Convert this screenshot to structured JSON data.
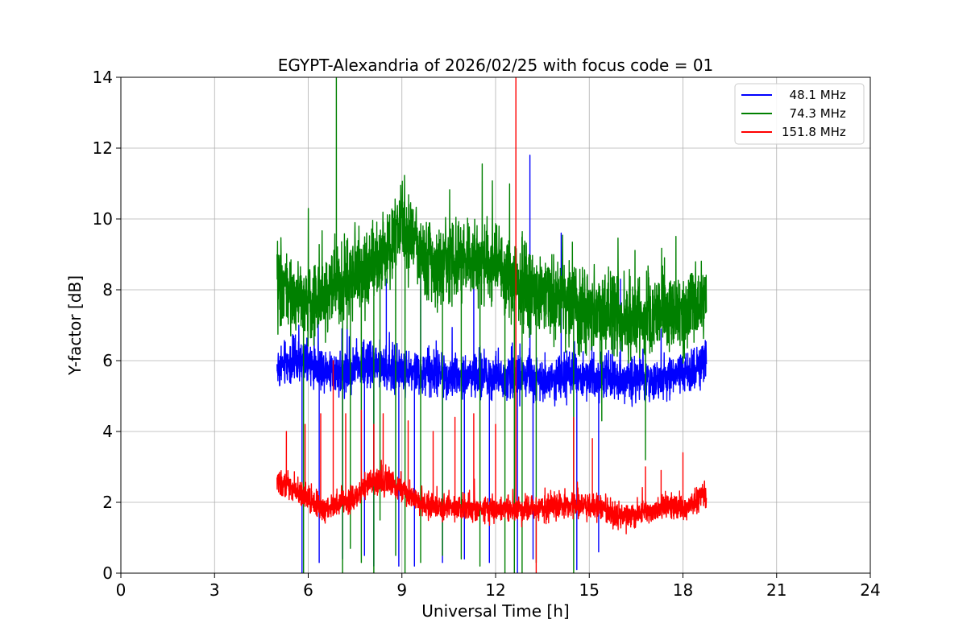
{
  "chart_data": {
    "type": "line",
    "title": "EGYPT-Alexandria of 2026/02/25 with focus code = 01",
    "xlabel": "Universal Time [h]",
    "ylabel": "Y-factor [dB]",
    "xlim": [
      0,
      24
    ],
    "ylim": [
      0,
      14
    ],
    "xticks": [
      0,
      3,
      6,
      9,
      12,
      15,
      18,
      21,
      24
    ],
    "yticks": [
      0,
      2,
      4,
      6,
      8,
      10,
      12,
      14
    ],
    "xtick_labels": [
      "0",
      "3",
      "6",
      "9",
      "12",
      "15",
      "18",
      "21",
      "24"
    ],
    "ytick_labels": [
      "0",
      "2",
      "4",
      "6",
      "8",
      "10",
      "12",
      "14"
    ],
    "grid": true,
    "legend_position": "top-right",
    "series": [
      {
        "name": "  48.1 MHz",
        "color": "#0000ff",
        "x_start": 5.0,
        "x_end": 18.75,
        "baseline": [
          [
            5.0,
            5.8
          ],
          [
            5.5,
            6.0
          ],
          [
            6.0,
            5.9
          ],
          [
            7.0,
            5.7
          ],
          [
            8.0,
            5.9
          ],
          [
            9.0,
            5.7
          ],
          [
            10.0,
            5.6
          ],
          [
            11.0,
            5.6
          ],
          [
            12.0,
            5.6
          ],
          [
            13.0,
            5.5
          ],
          [
            14.0,
            5.5
          ],
          [
            15.0,
            5.6
          ],
          [
            16.0,
            5.5
          ],
          [
            17.0,
            5.4
          ],
          [
            18.0,
            5.6
          ],
          [
            18.75,
            6.0
          ]
        ],
        "noise": 0.6,
        "spikes": [
          [
            5.8,
            0.0
          ],
          [
            6.35,
            0.3
          ],
          [
            7.1,
            0.4
          ],
          [
            7.8,
            0.5
          ],
          [
            8.1,
            0.2
          ],
          [
            8.5,
            8.3
          ],
          [
            8.9,
            0.2
          ],
          [
            9.4,
            0.2
          ],
          [
            9.6,
            8.4
          ],
          [
            10.3,
            0.3
          ],
          [
            11.0,
            0.4
          ],
          [
            11.3,
            8.6
          ],
          [
            11.8,
            0.3
          ],
          [
            12.7,
            0.0
          ],
          [
            13.1,
            11.8
          ],
          [
            13.2,
            0.4
          ],
          [
            14.1,
            9.6
          ],
          [
            14.6,
            0.1
          ],
          [
            15.3,
            0.6
          ],
          [
            16.0,
            8.3
          ]
        ]
      },
      {
        "name": "  74.3 MHz",
        "color": "#008000",
        "x_start": 5.0,
        "x_end": 18.75,
        "baseline": [
          [
            5.0,
            8.2
          ],
          [
            5.5,
            7.8
          ],
          [
            6.0,
            7.6
          ],
          [
            6.5,
            7.8
          ],
          [
            7.0,
            8.3
          ],
          [
            7.5,
            8.4
          ],
          [
            8.0,
            8.6
          ],
          [
            8.5,
            9.1
          ],
          [
            9.0,
            9.8
          ],
          [
            9.5,
            9.2
          ],
          [
            10.0,
            8.6
          ],
          [
            11.0,
            8.8
          ],
          [
            12.0,
            8.7
          ],
          [
            13.0,
            8.0
          ],
          [
            14.0,
            7.8
          ],
          [
            15.0,
            7.4
          ],
          [
            16.0,
            7.2
          ],
          [
            17.0,
            7.3
          ],
          [
            18.0,
            7.4
          ],
          [
            18.75,
            7.8
          ]
        ],
        "noise": 1.1,
        "spikes": [
          [
            5.85,
            0.0
          ],
          [
            6.9,
            14.0
          ],
          [
            7.1,
            0.0
          ],
          [
            7.35,
            0.7
          ],
          [
            7.7,
            0.3
          ],
          [
            8.1,
            0.0
          ],
          [
            8.3,
            1.5
          ],
          [
            8.8,
            0.5
          ],
          [
            9.1,
            0.0
          ],
          [
            9.6,
            0.3
          ],
          [
            10.3,
            0.5
          ],
          [
            10.9,
            0.4
          ],
          [
            11.5,
            0.2
          ],
          [
            12.3,
            0.0
          ],
          [
            12.6,
            0.0
          ],
          [
            12.85,
            0.0
          ],
          [
            13.3,
            0.3
          ],
          [
            14.5,
            0.0
          ],
          [
            15.4,
            4.3
          ],
          [
            16.8,
            3.2
          ]
        ]
      },
      {
        "name": "151.8 MHz",
        "color": "#ff0000",
        "x_start": 5.0,
        "x_end": 18.75,
        "baseline": [
          [
            5.0,
            2.6
          ],
          [
            5.5,
            2.4
          ],
          [
            6.0,
            2.1
          ],
          [
            6.5,
            1.8
          ],
          [
            7.0,
            2.0
          ],
          [
            7.5,
            2.1
          ],
          [
            8.0,
            2.6
          ],
          [
            8.5,
            2.6
          ],
          [
            9.0,
            2.4
          ],
          [
            9.5,
            2.0
          ],
          [
            10.0,
            1.9
          ],
          [
            11.0,
            1.8
          ],
          [
            12.0,
            1.8
          ],
          [
            13.0,
            1.8
          ],
          [
            14.0,
            1.9
          ],
          [
            15.0,
            1.9
          ],
          [
            15.5,
            1.8
          ],
          [
            16.0,
            1.6
          ],
          [
            16.5,
            1.6
          ],
          [
            17.0,
            1.8
          ],
          [
            17.5,
            1.9
          ],
          [
            18.0,
            1.8
          ],
          [
            18.75,
            2.3
          ]
        ],
        "noise": 0.35,
        "spikes": [
          [
            5.3,
            4.0
          ],
          [
            5.9,
            4.2
          ],
          [
            6.4,
            4.5
          ],
          [
            6.8,
            6.0
          ],
          [
            7.2,
            4.5
          ],
          [
            7.7,
            4.6
          ],
          [
            8.1,
            4.2
          ],
          [
            8.4,
            4.5
          ],
          [
            9.2,
            4.3
          ],
          [
            10.0,
            4.0
          ],
          [
            10.7,
            4.4
          ],
          [
            11.3,
            4.5
          ],
          [
            12.0,
            4.2
          ],
          [
            12.65,
            14.0
          ],
          [
            13.3,
            0.0
          ],
          [
            14.5,
            4.4
          ],
          [
            15.1,
            3.8
          ],
          [
            16.8,
            3.0
          ],
          [
            17.3,
            2.9
          ],
          [
            18.0,
            3.4
          ]
        ]
      }
    ]
  }
}
